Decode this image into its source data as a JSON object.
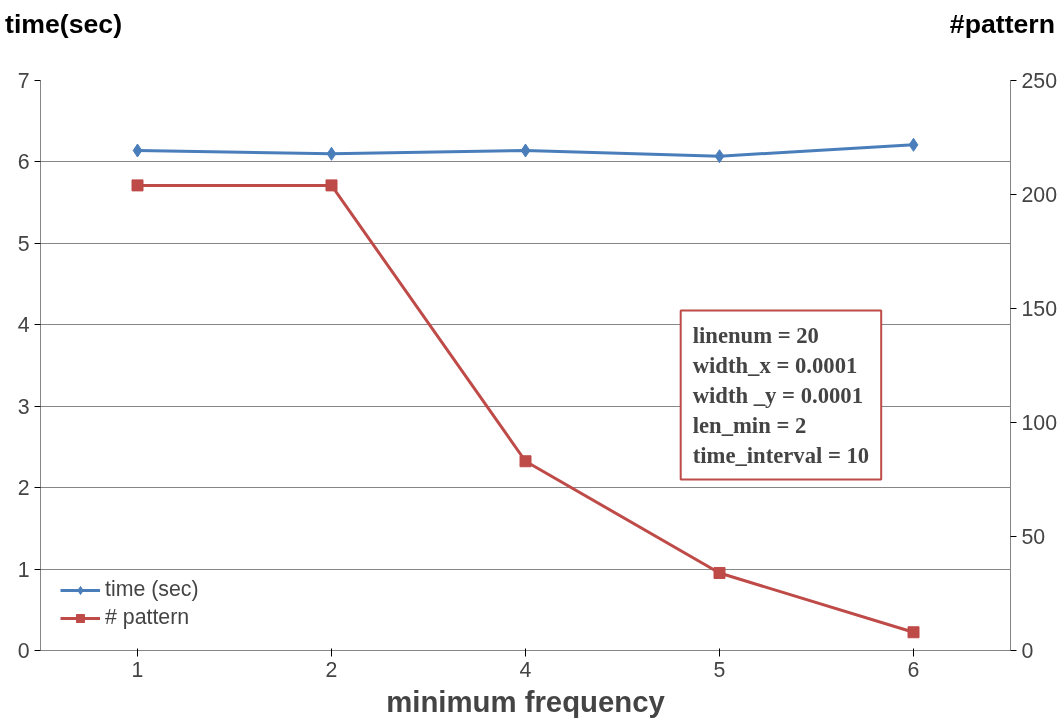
{
  "chart_data": {
    "type": "line",
    "xlabel": "minimum frequency",
    "ylabel": "time(sec)",
    "y2label": "#pattern",
    "categories": [
      "1",
      "2",
      "4",
      "5",
      "6"
    ],
    "series": [
      {
        "name": "time (sec)",
        "color": "#4a7ebb",
        "marker": "diamond",
        "values": [
          6.14,
          6.1,
          6.14,
          6.07,
          6.21
        ]
      },
      {
        "name": "# pattern",
        "color": "#be4b48",
        "marker": "square",
        "axis": "y2",
        "values": [
          204,
          204,
          83,
          34,
          8
        ]
      }
    ],
    "ylim": [
      0,
      7
    ],
    "yticks": [
      0,
      1,
      2,
      3,
      4,
      5,
      6,
      7
    ],
    "y2lim": [
      0,
      250
    ],
    "y2ticks": [
      0,
      50,
      100,
      150,
      200,
      250
    ],
    "grid": "y",
    "legend": "bottom left",
    "line_style": "solid",
    "annotations": [
      "linenum = 20",
      "width_x = 0.0001",
      "width _y = 0.0001",
      "len_min = 2",
      "time_interval = 10"
    ]
  }
}
